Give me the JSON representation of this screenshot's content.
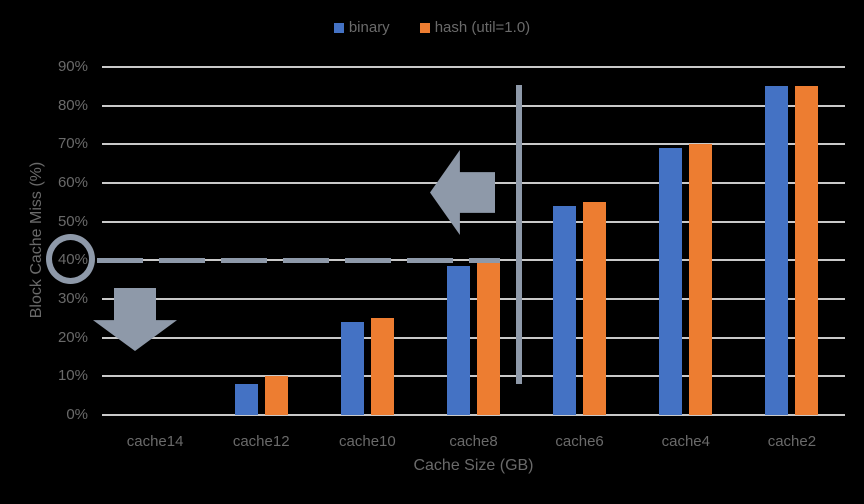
{
  "colors": {
    "background": "#000000",
    "gridline": "#C9C9C9",
    "axis_text": "#6A6A6A"
  },
  "chart_data": {
    "type": "bar",
    "title": "",
    "categories": [
      "cache14",
      "cache12",
      "cache10",
      "cache8",
      "cache6",
      "cache4",
      "cache2"
    ],
    "series": [
      {
        "name": "binary",
        "color": "#4472C4",
        "values": [
          0,
          8,
          24,
          38.5,
          54,
          69,
          85
        ]
      },
      {
        "name": "hash (util=1.0)",
        "color": "#ED7D31",
        "values": [
          0,
          10,
          25,
          40,
          55,
          70,
          85
        ]
      }
    ],
    "xlabel": "Cache Size (GB)",
    "ylabel": "Block Cache Miss (%)",
    "ylim": [
      0,
      90
    ],
    "ytick_step": 10,
    "ytick_labels": [
      "0%",
      "10%",
      "20%",
      "30%",
      "40%",
      "50%",
      "60%",
      "70%",
      "80%",
      "90%"
    ],
    "grid": true,
    "legend_position": "top-center",
    "annotation_color": "#8E99A9",
    "annotations": [
      {
        "kind": "circle-highlight",
        "target": "y-axis-label-40%"
      },
      {
        "kind": "dashed-reference-line",
        "at_percent": 40,
        "from": "y-axis",
        "to": "cache8"
      },
      {
        "kind": "vertical-divider-line",
        "between": [
          "cache8",
          "cache6"
        ]
      },
      {
        "kind": "left-block-arrow",
        "points_at": "vertical-divider-line"
      },
      {
        "kind": "down-block-arrow",
        "meaning": "below 40% region near cache14/cache12"
      }
    ]
  }
}
